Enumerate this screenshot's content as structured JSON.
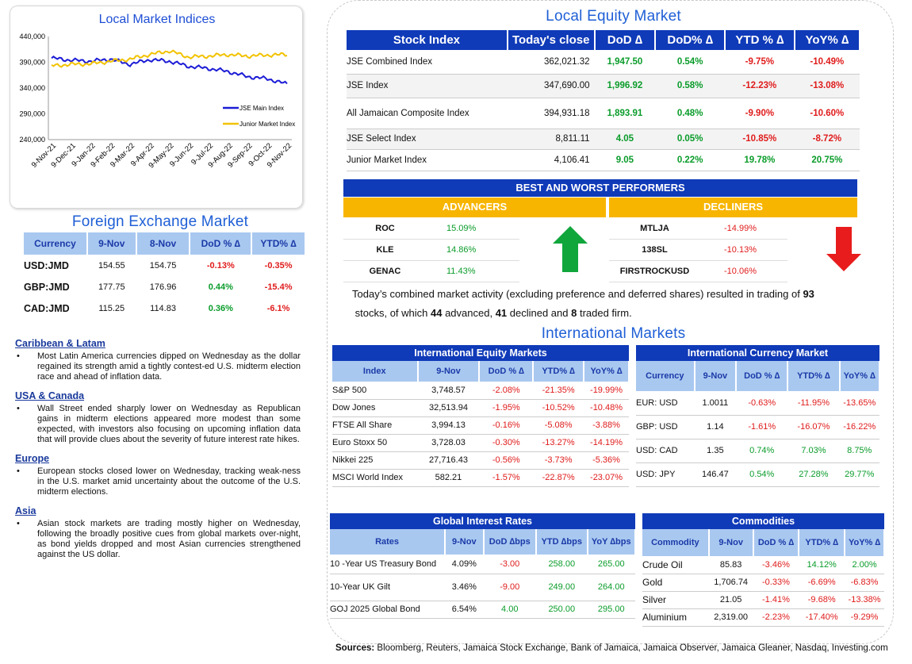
{
  "chart": {
    "title": "Local Market Indices",
    "legend": [
      "JSE Main Index",
      "Junior Market Index"
    ]
  },
  "chart_data": {
    "type": "line",
    "title": "Local Market Indices",
    "x": [
      "9-Nov-21",
      "9-Dec-21",
      "9-Jan-22",
      "9-Feb-22",
      "9-Mar-22",
      "9-Apr-22",
      "9-May-22",
      "9-Jun-22",
      "9-Jul-22",
      "9-Aug-22",
      "9-Sep-22",
      "9-Oct-22",
      "9-Nov-22"
    ],
    "yticks": [
      "240,000",
      "290,000",
      "340,000",
      "390,000",
      "440,000"
    ],
    "ylim": [
      240000,
      440000
    ],
    "series": [
      {
        "name": "JSE Main Index",
        "color": "#1c1cd6",
        "values": [
          398000,
          394000,
          392000,
          396000,
          386000,
          395000,
          392000,
          382000,
          378000,
          372000,
          362000,
          358000,
          347690
        ]
      },
      {
        "name": "Junior Market Index",
        "color": "#f2c200",
        "values": [
          383000,
          386000,
          387000,
          392000,
          396000,
          405000,
          412000,
          400000,
          402000,
          405000,
          402000,
          404000,
          405000
        ]
      }
    ]
  },
  "fx": {
    "title": "Foreign Exchange Market",
    "headers": [
      "Currency",
      "9-Nov",
      "8-Nov",
      "DoD % ∆",
      "YTD% ∆"
    ],
    "rows": [
      [
        "USD:JMD",
        "154.55",
        "154.75",
        "-0.13%",
        "-0.35%"
      ],
      [
        "GBP:JMD",
        "177.75",
        "176.96",
        "0.44%",
        "-15.4%"
      ],
      [
        "CAD:JMD",
        "115.25",
        "114.83",
        "0.36%",
        "-6.1%"
      ]
    ]
  },
  "news": [
    {
      "h": "Caribbean & Latam",
      "t": "Most Latin America currencies dipped on Wednesday as the dollar regained its strength amid a tightly contest-ed U.S. midterm election race and ahead of inflation data."
    },
    {
      "h": "USA & Canada",
      "t": "Wall Street ended sharply lower on Wednesday as Republican gains in midterm elections appeared more modest than some expected, with investors also focusing on upcoming inflation data that will provide clues about the severity of future interest rate hikes."
    },
    {
      "h": "Europe",
      "t": "European stocks closed lower on Wednesday, tracking weak-ness in the U.S. market amid uncertainty about the outcome of the U.S. midterm elections."
    },
    {
      "h": "Asia",
      "t": "Asian stock markets are trading mostly higher on Wednesday, following the broadly positive cues from global markets over-night, as bond yields dropped and most Asian currencies strengthened against the US dollar."
    }
  ],
  "equity": {
    "title": "Local Equity Market",
    "headers": [
      "Stock Index",
      "Today's close",
      "DoD  ∆",
      "DoD% ∆",
      "YTD % ∆",
      "YoY% ∆"
    ],
    "rows": [
      [
        "JSE Combined Index",
        "362,021.32",
        "1,947.50",
        "0.54%",
        "-9.75%",
        "-10.49%"
      ],
      [
        "JSE Index",
        "347,690.00",
        "1,996.92",
        "0.58%",
        "-12.23%",
        "-13.08%"
      ],
      [
        "All Jamaican Composite Index",
        "394,931.18",
        "1,893.91",
        "0.48%",
        "-9.90%",
        "-10.60%"
      ],
      [
        "JSE Select Index",
        "8,811.11",
        "4.05",
        "0.05%",
        "-10.85%",
        "-8.72%"
      ],
      [
        "Junior Market Index",
        "4,106.41",
        "9.05",
        "0.22%",
        "19.78%",
        "20.75%"
      ]
    ]
  },
  "perf": {
    "title": "BEST AND WORST PERFORMERS",
    "adv_label": "ADVANCERS",
    "dec_label": "DECLINERS",
    "advancers": [
      [
        "ROC",
        "15.09%"
      ],
      [
        "KLE",
        "14.86%"
      ],
      [
        "GENAC",
        "11.43%"
      ]
    ],
    "decliners": [
      [
        "MTLJA",
        "-14.99%"
      ],
      [
        "138SL",
        "-10.13%"
      ],
      [
        "FIRSTROCKUSD",
        "-10.06%"
      ]
    ]
  },
  "summary": {
    "pre": "Today’s combined market activity (excluding preference and deferred shares) resulted in trading of ",
    "n1": "93",
    "mid1": "stocks, of which ",
    "n2": "44",
    "mid2": " advanced, ",
    "n3": "41",
    "mid3": " declined and ",
    "n4": "8",
    "post": " traded firm."
  },
  "intl_title": "International Markets",
  "ieq": {
    "title": "International Equity Markets",
    "headers": [
      "Index",
      "9-Nov",
      "DoD % ∆",
      "YTD% ∆",
      "YoY% ∆"
    ],
    "rows": [
      [
        "S&P 500",
        "3,748.57",
        "-2.08%",
        "-21.35%",
        "-19.99%"
      ],
      [
        "Dow Jones",
        "32,513.94",
        "-1.95%",
        "-10.52%",
        "-10.48%"
      ],
      [
        "FTSE All Share",
        "3,994.13",
        "-0.16%",
        "-5.08%",
        "-3.88%"
      ],
      [
        "Euro Stoxx 50",
        "3,728.03",
        "-0.30%",
        "-13.27%",
        "-14.19%"
      ],
      [
        "Nikkei 225",
        "27,716.43",
        "-0.56%",
        "-3.73%",
        "-5.36%"
      ],
      [
        "MSCI World Index",
        "582.21",
        "-1.57%",
        "-22.87%",
        "-23.07%"
      ]
    ]
  },
  "icur": {
    "title": "International Currency Market",
    "headers": [
      "Currency",
      "9-Nov",
      "DoD % ∆",
      "YTD% ∆",
      "YoY% ∆"
    ],
    "rows": [
      [
        "EUR: USD",
        "1.0011",
        "-0.63%",
        "-11.95%",
        "-13.65%"
      ],
      [
        "GBP: USD",
        "1.14",
        "-1.61%",
        "-16.07%",
        "-16.22%"
      ],
      [
        "USD: CAD",
        "1.35",
        "0.74%",
        "7.03%",
        "8.75%"
      ],
      [
        "USD: JPY",
        "146.47",
        "0.54%",
        "27.28%",
        "29.77%"
      ]
    ]
  },
  "rates": {
    "title": "Global Interest Rates",
    "headers": [
      "Rates",
      "9-Nov",
      "DoD ∆bps",
      "YTD ∆bps",
      "YoY ∆bps"
    ],
    "rows": [
      [
        "10 -Year US Treasury Bond",
        "4.09%",
        "-3.00",
        "258.00",
        "265.00"
      ],
      [
        "10-Year UK Gilt",
        "3.46%",
        "-9.00",
        "249.00",
        "264.00"
      ],
      [
        "GOJ 2025 Global Bond",
        "6.54%",
        "4.00",
        "250.00",
        "295.00"
      ]
    ]
  },
  "comm": {
    "title": "Commodities",
    "headers": [
      "Commodity",
      "9-Nov",
      "DoD % ∆",
      "YTD% ∆",
      "YoY% ∆"
    ],
    "rows": [
      [
        "Crude Oil",
        "85.83",
        "-3.46%",
        "14.12%",
        "2.00%"
      ],
      [
        "Gold",
        "1,706.74",
        "-0.33%",
        "-6.69%",
        "-6.83%"
      ],
      [
        "Silver",
        "21.05",
        "-1.41%",
        "-9.68%",
        "-13.38%"
      ],
      [
        "Aluminium",
        "2,319.00",
        "-2.23%",
        "-17.40%",
        "-9.29%"
      ]
    ]
  },
  "sources": {
    "label": "Sources:",
    "text": " Bloomberg, Reuters, Jamaica Stock Exchange, Bank of Jamaica, Jamaica Observer, Jamaica Gleaner, Nasdaq, Investing.com"
  }
}
